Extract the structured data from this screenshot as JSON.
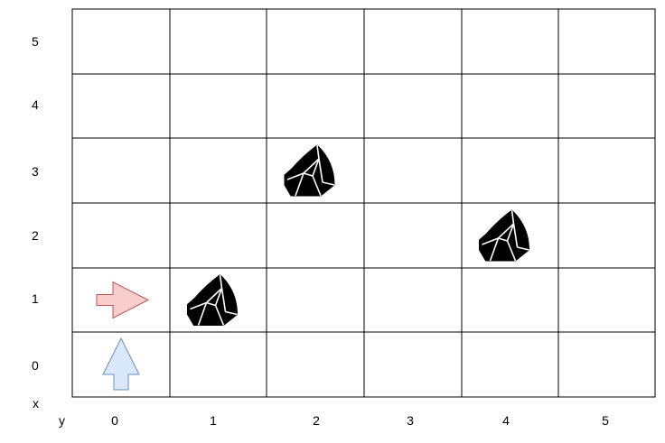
{
  "grid": {
    "cols": 6,
    "rows": 6,
    "row_labels": [
      "5",
      "4",
      "3",
      "2",
      "1",
      "0"
    ],
    "col_labels": [
      "0",
      "1",
      "2",
      "3",
      "4",
      "5"
    ],
    "x_axis_label": "x",
    "y_axis_label": "y",
    "line_color": "#000000",
    "background": "#ffffff"
  },
  "agents": [
    {
      "name": "red-agent",
      "col": 0,
      "row": 1,
      "direction": "right",
      "fill": "#f8cecc",
      "stroke": "#b85450"
    },
    {
      "name": "blue-agent",
      "col": 0,
      "row": 0,
      "direction": "up",
      "fill": "#dae8fc",
      "stroke": "#6c8ebf"
    }
  ],
  "obstacles": [
    {
      "name": "rock",
      "col": 2,
      "row": 3,
      "icon": "rock-icon"
    },
    {
      "name": "rock",
      "col": 4,
      "row": 2,
      "icon": "rock-icon"
    },
    {
      "name": "rock",
      "col": 1,
      "row": 1,
      "icon": "rock-icon"
    }
  ]
}
